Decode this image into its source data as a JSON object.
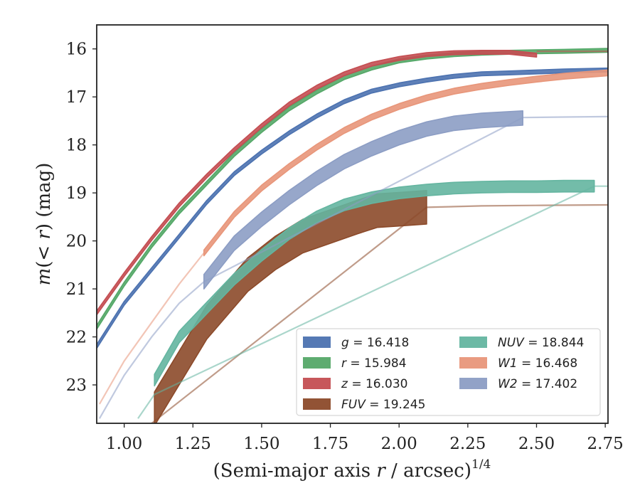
{
  "chart_data": {
    "type": "line",
    "title": "",
    "xlabel": "(Semi-major axis r / arcsec)",
    "xlabel_exponent": "1/4",
    "ylabel": "m(< r) (mag)",
    "xlim": [
      0.9,
      2.76
    ],
    "ylim": [
      23.8,
      15.5
    ],
    "y_inverted": true,
    "grid": false,
    "legend_position": "lower-right",
    "x_ticks": [
      1.0,
      1.25,
      1.5,
      1.75,
      2.0,
      2.25,
      2.5,
      2.75
    ],
    "x_tick_labels": [
      "1.00",
      "1.25",
      "1.50",
      "1.75",
      "2.00",
      "2.25",
      "2.50",
      "2.75"
    ],
    "y_ticks": [
      16,
      17,
      18,
      19,
      20,
      21,
      22,
      23
    ],
    "y_tick_labels": [
      "16",
      "17",
      "18",
      "19",
      "20",
      "21",
      "22",
      "23"
    ],
    "series": [
      {
        "name": "g",
        "total": "16.418",
        "color": "#4c72b0",
        "band": 0.04,
        "faint_x": [],
        "faint_y": [],
        "x": [
          0.9,
          1.0,
          1.1,
          1.2,
          1.3,
          1.4,
          1.5,
          1.6,
          1.7,
          1.8,
          1.9,
          2.0,
          2.1,
          2.2,
          2.3,
          2.4,
          2.5,
          2.6,
          2.76
        ],
        "y": [
          22.2,
          21.3,
          20.6,
          19.9,
          19.2,
          18.6,
          18.15,
          17.75,
          17.4,
          17.1,
          16.88,
          16.75,
          16.65,
          16.57,
          16.52,
          16.5,
          16.48,
          16.46,
          16.44
        ]
      },
      {
        "name": "r",
        "total": "15.984",
        "color": "#55a868",
        "band": 0.04,
        "faint_x": [],
        "faint_y": [],
        "x": [
          0.9,
          1.0,
          1.1,
          1.2,
          1.3,
          1.4,
          1.5,
          1.6,
          1.7,
          1.8,
          1.9,
          2.0,
          2.1,
          2.2,
          2.3,
          2.4,
          2.5,
          2.6,
          2.76
        ],
        "y": [
          21.8,
          20.9,
          20.1,
          19.4,
          18.8,
          18.2,
          17.7,
          17.25,
          16.9,
          16.6,
          16.4,
          16.25,
          16.17,
          16.12,
          16.09,
          16.07,
          16.06,
          16.05,
          16.03
        ]
      },
      {
        "name": "z",
        "total": "16.030",
        "color": "#c44e52",
        "band": 0.04,
        "faint_x": [
          2.5,
          2.76
        ],
        "faint_y": [
          16.05,
          16.05
        ],
        "x": [
          0.9,
          1.0,
          1.1,
          1.2,
          1.3,
          1.4,
          1.5,
          1.6,
          1.7,
          1.8,
          1.9,
          2.0,
          2.1,
          2.2,
          2.3,
          2.4,
          2.5
        ],
        "y": [
          21.5,
          20.7,
          19.95,
          19.25,
          18.65,
          18.1,
          17.6,
          17.15,
          16.8,
          16.52,
          16.32,
          16.2,
          16.12,
          16.08,
          16.07,
          16.07,
          16.13
        ]
      },
      {
        "name": "FUV",
        "total": "19.245",
        "italic": true,
        "color": "#8c4a2a",
        "band": 0.35,
        "faint_x": [
          1.03,
          1.1,
          2.1,
          2.3,
          2.5,
          2.76
        ],
        "faint_y": [
          24.1,
          23.8,
          19.3,
          19.27,
          19.26,
          19.25
        ],
        "x": [
          1.11,
          1.3,
          1.45,
          1.55,
          1.65,
          1.75,
          1.85,
          1.92,
          2.0,
          2.1
        ],
        "y": [
          23.5,
          21.7,
          20.7,
          20.25,
          19.9,
          19.7,
          19.5,
          19.37,
          19.34,
          19.3
        ]
      },
      {
        "name": "NUV",
        "total": "18.844",
        "italic": true,
        "color": "#64b5a0",
        "band": 0.12,
        "faint_x": [
          1.05,
          1.11,
          2.71,
          2.76
        ],
        "faint_y": [
          23.7,
          23.2,
          18.86,
          18.86
        ],
        "x": [
          1.11,
          1.2,
          1.3,
          1.4,
          1.5,
          1.6,
          1.7,
          1.8,
          1.9,
          2.0,
          2.1,
          2.2,
          2.3,
          2.4,
          2.5,
          2.6,
          2.71
        ],
        "y": [
          22.9,
          22.0,
          21.4,
          20.8,
          20.3,
          19.85,
          19.5,
          19.25,
          19.1,
          19.0,
          18.94,
          18.9,
          18.88,
          18.87,
          18.87,
          18.86,
          18.86
        ]
      },
      {
        "name": "W1",
        "total": "16.468",
        "italic": true,
        "color": "#e8967a",
        "band": 0.06,
        "faint_x": [
          0.91,
          1.0,
          1.1,
          1.2,
          1.29
        ],
        "faint_y": [
          23.4,
          22.5,
          21.7,
          20.9,
          20.25
        ],
        "x": [
          1.29,
          1.4,
          1.5,
          1.6,
          1.7,
          1.8,
          1.9,
          2.0,
          2.1,
          2.2,
          2.3,
          2.4,
          2.5,
          2.6,
          2.76
        ],
        "y": [
          20.25,
          19.45,
          18.9,
          18.45,
          18.05,
          17.7,
          17.42,
          17.2,
          17.02,
          16.88,
          16.78,
          16.7,
          16.63,
          16.57,
          16.5
        ]
      },
      {
        "name": "W2",
        "total": "17.402",
        "italic": true,
        "color": "#8c9dc4",
        "band": 0.15,
        "faint_x": [
          0.91,
          1.0,
          1.1,
          1.2,
          1.29,
          2.45,
          2.6,
          2.76
        ],
        "faint_y": [
          23.7,
          22.8,
          22.0,
          21.3,
          20.85,
          17.43,
          17.42,
          17.41
        ],
        "x": [
          1.29,
          1.4,
          1.5,
          1.6,
          1.7,
          1.8,
          1.9,
          2.0,
          2.1,
          2.2,
          2.3,
          2.45
        ],
        "y": [
          20.85,
          20.05,
          19.55,
          19.1,
          18.7,
          18.35,
          18.08,
          17.85,
          17.67,
          17.55,
          17.49,
          17.44
        ]
      }
    ]
  }
}
